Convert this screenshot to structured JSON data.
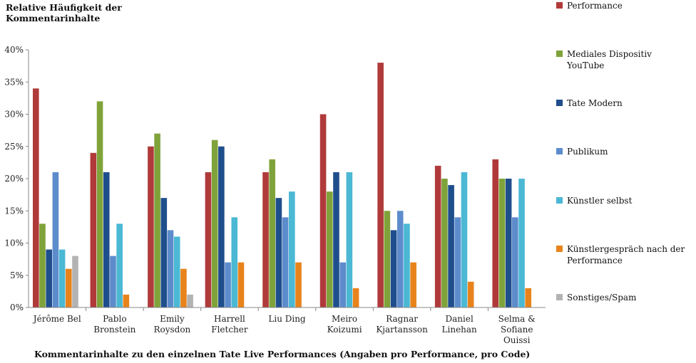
{
  "chart_data": {
    "type": "bar",
    "title": "",
    "ylabel": "Relative Häufigkeit der\nKommentarinhalte",
    "xlabel": "Kommentarinhalte zu den einzelnen Tate Live Performances (Angaben pro Performance, pro Code)",
    "ylim": [
      0,
      40
    ],
    "yticks": [
      "0%",
      "5%",
      "10%",
      "15%",
      "20%",
      "25%",
      "30%",
      "35%",
      "40%"
    ],
    "legend_position": "right",
    "categories": [
      "Jérôme Bel",
      "Pablo\nBronstein",
      "Emily\nRoysdon",
      "Harrell\nFletcher",
      "Liu Ding",
      "Meiro\nKoizumi",
      "Ragnar\nKjartansson",
      "Daniel\nLinehan",
      "Selma &\nSofiane\nOuissi"
    ],
    "series": [
      {
        "name": "Performance",
        "color": "#b03a3a",
        "values": [
          34,
          24,
          25,
          21,
          21,
          30,
          38,
          22,
          23
        ]
      },
      {
        "name": "Mediales Dispositiv YouTube",
        "color": "#7fa33a",
        "values": [
          13,
          32,
          27,
          26,
          23,
          18,
          15,
          20,
          20
        ]
      },
      {
        "name": "Tate Modern",
        "color": "#1f4e8c",
        "values": [
          9,
          21,
          17,
          25,
          17,
          21,
          12,
          19,
          20
        ]
      },
      {
        "name": "Publikum",
        "color": "#5d8ccc",
        "values": [
          21,
          8,
          12,
          7,
          14,
          7,
          15,
          14,
          14
        ]
      },
      {
        "name": "Künstler selbst",
        "color": "#4bb8d4",
        "values": [
          9,
          13,
          11,
          14,
          18,
          21,
          13,
          21,
          20
        ]
      },
      {
        "name": "Künstlergespräch nach der Performance",
        "color": "#e8831c",
        "values": [
          6,
          2,
          6,
          7,
          7,
          3,
          7,
          4,
          3
        ]
      },
      {
        "name": "Sonstiges/Spam",
        "color": "#b3b3b3",
        "values": [
          8,
          0,
          2,
          0,
          0,
          0,
          0,
          0,
          0
        ]
      }
    ]
  }
}
